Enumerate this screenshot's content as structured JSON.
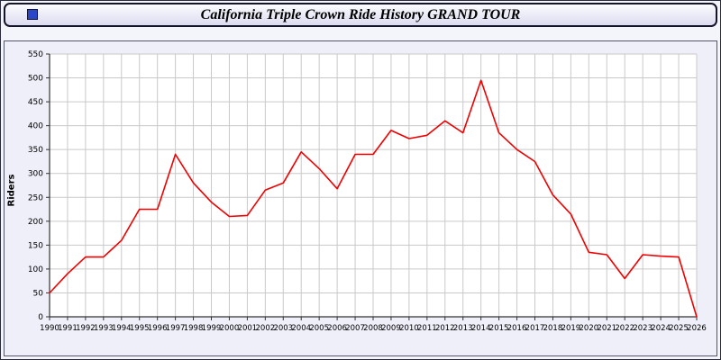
{
  "window": {
    "title": "California Triple Crown Ride History GRAND TOUR",
    "icon_color": "#2b46c8"
  },
  "chart_data": {
    "type": "line",
    "title": "California Triple Crown Ride History GRAND TOUR",
    "xlabel": "",
    "ylabel": "Riders",
    "ylim": [
      0,
      550
    ],
    "ytick_step": 50,
    "grid": true,
    "legend": false,
    "line_color": "#f00000",
    "grid_color": "#c9c9c9",
    "axis_color": "#333333",
    "plot_bg": "#ffffff",
    "categories": [
      "1990",
      "1991",
      "1992",
      "1993",
      "1994",
      "1995",
      "1996",
      "1997",
      "1998",
      "1999",
      "2000",
      "2001",
      "2002",
      "2003",
      "2004",
      "2005",
      "2006",
      "2007",
      "2008",
      "2009",
      "2010",
      "2011",
      "2012",
      "2013",
      "2014",
      "2015",
      "2016",
      "2017",
      "2018",
      "2019",
      "2020",
      "2021",
      "2022",
      "2023",
      "2024",
      "2025",
      "2026"
    ],
    "values": [
      50,
      90,
      125,
      125,
      160,
      225,
      225,
      340,
      280,
      240,
      210,
      212,
      265,
      280,
      345,
      310,
      268,
      340,
      340,
      390,
      373,
      380,
      410,
      385,
      495,
      385,
      350,
      325,
      255,
      215,
      135,
      130,
      80,
      130,
      127,
      125,
      0
    ]
  }
}
